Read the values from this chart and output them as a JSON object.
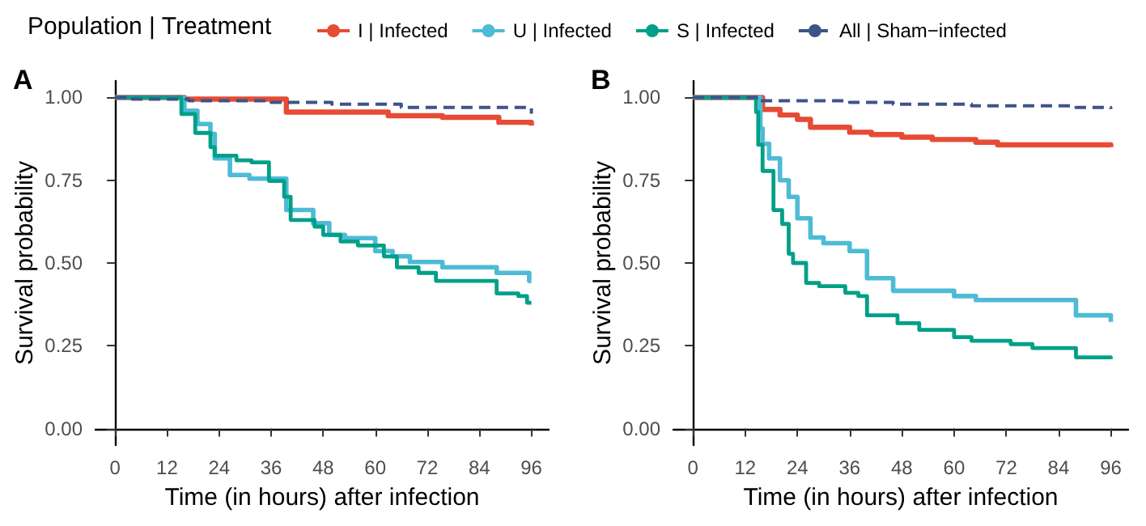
{
  "chart_data": [
    {
      "type": "step",
      "title": "A",
      "legend_title": "Population | Treatment",
      "xlabel": "Time (in hours) after infection",
      "ylabel": "Survival probability",
      "xlim": [
        -4.5,
        100
      ],
      "xticks": [
        0,
        12,
        24,
        36,
        48,
        60,
        72,
        84,
        96
      ],
      "ylim": [
        -0.05,
        1.05
      ],
      "yticks": [
        {
          "value": 0,
          "label": "0.00"
        },
        {
          "value": 0.25,
          "label": "0.25"
        },
        {
          "value": 0.5,
          "label": "0.50"
        },
        {
          "value": 0.75,
          "label": "0.75"
        },
        {
          "value": 1,
          "label": "1.00"
        }
      ],
      "grid": false,
      "legend": "top",
      "series": [
        {
          "name": "I | Infected",
          "color": "#e64b35",
          "x": [
            0,
            16,
            39.5,
            63,
            75.5,
            88.5,
            96
          ],
          "values": [
            1,
            0.995,
            0.956,
            0.945,
            0.94,
            0.925,
            0.915
          ]
        },
        {
          "name": "U | Infected",
          "color": "#4dbbd5",
          "x": [
            0,
            16,
            19,
            22,
            23,
            26.5,
            31,
            39.5,
            45.7,
            49.4,
            53,
            60,
            64,
            68,
            75.5,
            88,
            95.5,
            96
          ],
          "values": [
            1,
            0.96,
            0.92,
            0.89,
            0.816,
            0.766,
            0.755,
            0.66,
            0.62,
            0.585,
            0.575,
            0.536,
            0.52,
            0.503,
            0.487,
            0.47,
            0.446,
            0.446
          ]
        },
        {
          "name": "S | Infected",
          "color": "#00a087",
          "x": [
            0,
            15.3,
            18.5,
            22,
            23,
            28,
            31.5,
            35.5,
            39,
            40.5,
            46,
            48,
            52,
            56,
            62,
            65,
            70,
            74,
            88,
            93,
            95,
            96
          ],
          "values": [
            1,
            0.95,
            0.893,
            0.85,
            0.824,
            0.81,
            0.804,
            0.748,
            0.7,
            0.63,
            0.61,
            0.585,
            0.565,
            0.553,
            0.52,
            0.487,
            0.47,
            0.446,
            0.408,
            0.4,
            0.38,
            0.38
          ]
        },
        {
          "name": "All | Sham−infected",
          "color": "#3c5488",
          "line_style": "dashed",
          "x": [
            0,
            4,
            17,
            36,
            50,
            66,
            96
          ],
          "values": [
            1,
            0.995,
            0.99,
            0.985,
            0.98,
            0.97,
            0.951
          ]
        }
      ]
    },
    {
      "type": "step",
      "title": "B",
      "xlabel": "Time (in hours) after infection",
      "ylabel": "Survival probability",
      "xlim": [
        -4.5,
        100
      ],
      "xticks": [
        0,
        12,
        24,
        36,
        48,
        60,
        72,
        84,
        96
      ],
      "ylim": [
        -0.05,
        1.05
      ],
      "yticks": [
        {
          "value": 0,
          "label": "0.00"
        },
        {
          "value": 0.25,
          "label": "0.25"
        },
        {
          "value": 0.5,
          "label": "0.50"
        },
        {
          "value": 0.75,
          "label": "0.75"
        },
        {
          "value": 1,
          "label": "1.00"
        }
      ],
      "grid": false,
      "legend": "top",
      "series": [
        {
          "name": "I | Infected",
          "color": "#e64b35",
          "x": [
            0,
            16,
            20,
            24,
            27,
            36,
            41,
            48,
            55,
            65,
            70,
            96
          ],
          "values": [
            1,
            0.964,
            0.947,
            0.934,
            0.91,
            0.895,
            0.888,
            0.88,
            0.873,
            0.865,
            0.857,
            0.85
          ]
        },
        {
          "name": "U | Infected",
          "color": "#4dbbd5",
          "x": [
            0,
            15.5,
            16,
            17.5,
            20,
            22,
            24,
            27,
            30,
            36,
            40,
            46,
            60,
            65,
            88,
            96
          ],
          "values": [
            1,
            0.906,
            0.86,
            0.816,
            0.75,
            0.7,
            0.635,
            0.577,
            0.56,
            0.536,
            0.454,
            0.416,
            0.4,
            0.388,
            0.342,
            0.322
          ]
        },
        {
          "name": "S | Infected",
          "color": "#00a087",
          "x": [
            0,
            14.5,
            15,
            16,
            18.5,
            20.5,
            22,
            23,
            26,
            29,
            35,
            38,
            40,
            47,
            52,
            60,
            64,
            73,
            78,
            88,
            96
          ],
          "values": [
            1,
            0.956,
            0.857,
            0.778,
            0.66,
            0.618,
            0.528,
            0.5,
            0.44,
            0.43,
            0.41,
            0.4,
            0.342,
            0.318,
            0.298,
            0.276,
            0.265,
            0.255,
            0.243,
            0.215,
            0.21
          ]
        },
        {
          "name": "All | Sham−infected",
          "color": "#3c5488",
          "line_style": "dashed",
          "x": [
            0,
            15,
            36,
            46,
            64,
            88,
            96
          ],
          "values": [
            1,
            0.99,
            0.985,
            0.98,
            0.975,
            0.97,
            0.965
          ]
        }
      ]
    }
  ]
}
